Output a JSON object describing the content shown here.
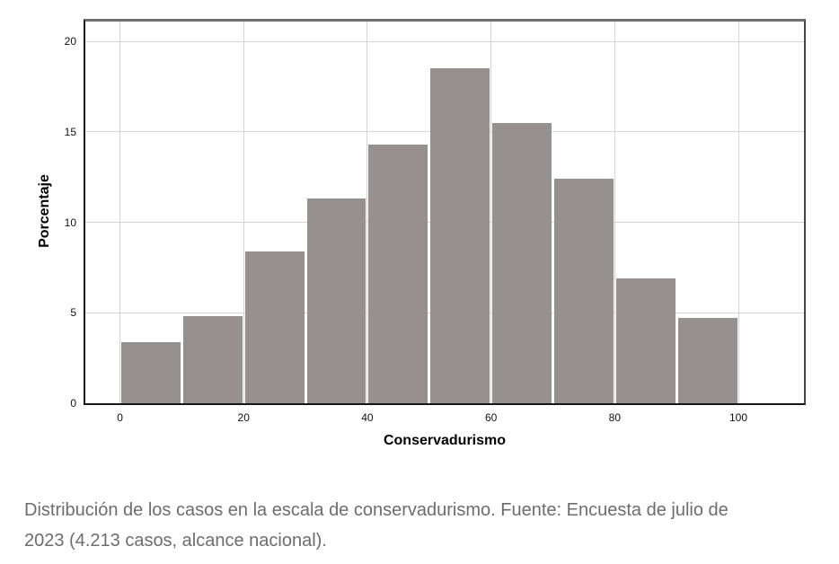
{
  "chart": {
    "bar_color": "#969190",
    "gridline_color": "#d4d4d4",
    "background_color": "#ffffff"
  },
  "chart_data": {
    "type": "bar",
    "subtype": "histogram",
    "title": "",
    "xlabel": "Conservadurismo",
    "ylabel": "Porcentaje",
    "bin_edges": [
      0,
      10,
      20,
      30,
      40,
      50,
      60,
      70,
      80,
      90,
      100
    ],
    "values": [
      3.4,
      4.8,
      8.4,
      11.3,
      14.3,
      18.5,
      15.5,
      12.4,
      6.9,
      4.7
    ],
    "x_ticks": [
      0,
      20,
      40,
      60,
      80,
      100
    ],
    "y_ticks": [
      0,
      5,
      10,
      15,
      20
    ],
    "xlim": [
      -5.6,
      110.6
    ],
    "ylim": [
      0,
      21.1
    ],
    "grid": true,
    "legend": false
  },
  "caption": {
    "lines": [
      "Distribución de los casos en la escala de conservadurismo. Fuente: Encuesta de julio de",
      "2023 (4.213 casos, alcance nacional)."
    ],
    "text": "Distribución de los casos en la escala de conservadurismo. Fuente: Encuesta de julio de 2023 (4.213 casos, alcance nacional)."
  }
}
